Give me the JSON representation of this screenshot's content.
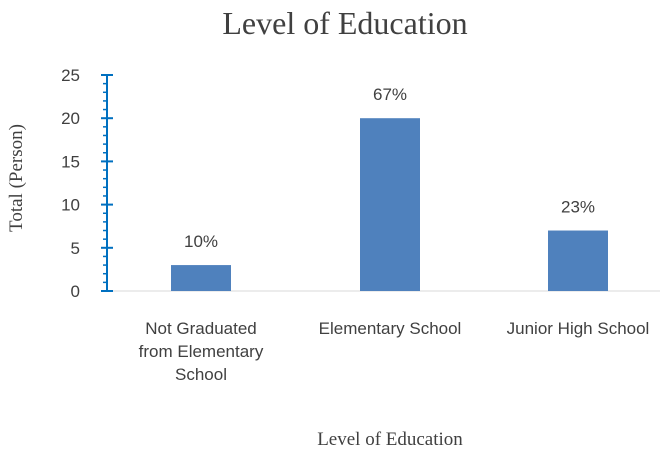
{
  "chart_data": {
    "type": "bar",
    "title": "Level of Education",
    "xlabel": "Level of Education",
    "ylabel": "Total (Person)",
    "categories": [
      [
        "Not Graduated",
        "from Elementary",
        "School"
      ],
      [
        "Elementary School"
      ],
      [
        "Junior High School"
      ]
    ],
    "values": [
      3,
      20,
      7
    ],
    "data_labels": [
      "10%",
      "67%",
      "23%"
    ],
    "ylim": [
      0,
      25
    ],
    "yticks": [
      "0",
      "5",
      "10",
      "15",
      "20",
      "25"
    ],
    "grid": false,
    "legend": "none",
    "bar_color": "#4f81bd",
    "axis_color": "#0070c0"
  }
}
